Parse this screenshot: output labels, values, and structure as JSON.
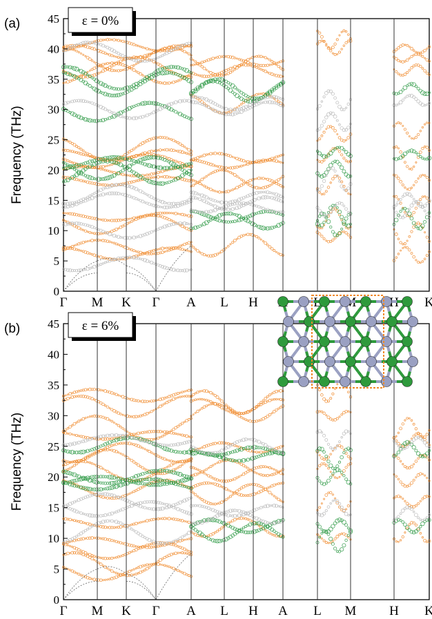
{
  "colors": {
    "orange": "#f08a2c",
    "green": "#2f9a46",
    "gray": "#b8b8b8",
    "line": "#333333",
    "atom_green": "#2e9a3c",
    "atom_blue": "#9aa0c2",
    "box": "#ef8a2a"
  },
  "chart_data": [
    {
      "type": "scatter",
      "subtype": "phonon-band-structure",
      "panel_label": "(a)",
      "strain_label": "ε = 0%",
      "ylabel": "Frequency (THz)",
      "ylim": [
        0,
        45
      ],
      "yticks": [
        "0",
        "5",
        "10",
        "15",
        "20",
        "25",
        "30",
        "35",
        "40",
        "45"
      ],
      "kpath": [
        "Γ",
        "M",
        "K",
        "Γ",
        "A",
        "L",
        "H",
        "A",
        "L",
        "M",
        "H",
        "K"
      ],
      "grid": "vertical lines at high-symmetry points",
      "series": [
        {
          "color": "orange",
          "bands": [
            {
              "seg": [
                0,
                4
              ],
              "y": [
                40.6,
                39.5,
                38.3,
                37.0,
                36.0,
                23.5,
                22.5,
                21.5,
                19.8,
                18.2,
                12.3,
                11.0,
                7.3,
                6.2
              ]
            },
            {
              "seg": [
                4,
                7
              ],
              "y": [
                38.0,
                37.2,
                36.4,
                31.0,
                22.0,
                21.0,
                18.5,
                17.5,
                7.6
              ]
            },
            {
              "seg": [
                8,
                9
              ],
              "y": [
                41.5,
                40.2,
                26.0,
                22.5,
                17.5,
                12.0,
                9.0
              ]
            },
            {
              "seg": [
                10,
                11
              ],
              "y": [
                40.0,
                38.5,
                36.5,
                26.5,
                22.0,
                18.0,
                14.0,
                9.5,
                6.0
              ]
            }
          ]
        },
        {
          "color": "green",
          "bands": [
            {
              "seg": [
                0,
                4
              ],
              "y": [
                35.2,
                34.2,
                29.6,
                21.2,
                20.3,
                19.6
              ]
            },
            {
              "seg": [
                4,
                7
              ],
              "y": [
                33.4,
                33.0,
                12.3,
                11.6
              ]
            },
            {
              "seg": [
                8,
                9
              ],
              "y": [
                23.0,
                20.2,
                12.5,
                11.0
              ]
            },
            {
              "seg": [
                10,
                11
              ],
              "y": [
                33.4,
                22.5,
                12.0
              ]
            }
          ]
        },
        {
          "color": "gray",
          "bands": [
            {
              "seg": [
                0,
                4
              ],
              "y": [
                39.5,
                30.0,
                16.0,
                15.0,
                10.0,
                4.5
              ]
            },
            {
              "seg": [
                4,
                7
              ],
              "y": [
                31.0,
                30.2,
                15.5,
                14.5,
                13.8
              ]
            },
            {
              "seg": [
                8,
                9
              ],
              "y": [
                31.5,
                28.0,
                18.5,
                13.5
              ]
            },
            {
              "seg": [
                10,
                11
              ],
              "y": [
                31.5,
                15.0,
                13.5
              ]
            }
          ]
        }
      ]
    },
    {
      "type": "scatter",
      "subtype": "phonon-band-structure",
      "panel_label": "(b)",
      "strain_label": "ε = 6%",
      "ylabel": "Frequency (THz)",
      "ylim": [
        0,
        45
      ],
      "yticks": [
        "0",
        "5",
        "10",
        "15",
        "20",
        "25",
        "30",
        "35",
        "40",
        "45"
      ],
      "kpath": [
        "Γ",
        "M",
        "K",
        "Γ",
        "A",
        "L",
        "H",
        "A",
        "L",
        "M",
        "H",
        "K"
      ],
      "grid": "vertical lines at high-symmetry points",
      "inset": "crystal-structure with orange dashed unit cell (top-right)",
      "series": [
        {
          "color": "orange",
          "bands": [
            {
              "seg": [
                0,
                4
              ],
              "y": [
                33.3,
                31.5,
                28.0,
                26.8,
                24.0,
                22.5,
                21.0,
                18.0,
                12.5,
                9.3,
                8.0,
                5.8,
                4.5
              ]
            },
            {
              "seg": [
                4,
                7
              ],
              "y": [
                32.2,
                31.5,
                30.5,
                24.8,
                21.5,
                20.5,
                18.0,
                17.2,
                11.8
              ]
            },
            {
              "seg": [
                8,
                9
              ],
              "y": [
                34.0,
                30.0,
                24.0,
                21.0,
                16.0,
                10.0
              ]
            },
            {
              "seg": [
                10,
                11
              ],
              "y": [
                28.0,
                26.0,
                22.5,
                19.5,
                16.0,
                11.0
              ]
            }
          ]
        },
        {
          "color": "green",
          "bands": [
            {
              "seg": [
                0,
                4
              ],
              "y": [
                25.2,
                20.0,
                19.4,
                18.8
              ]
            },
            {
              "seg": [
                4,
                7
              ],
              "y": [
                24.2,
                23.3,
                12.0,
                11.0
              ]
            },
            {
              "seg": [
                8,
                9
              ],
              "y": [
                23.0,
                20.0,
                12.0,
                9.5
              ]
            },
            {
              "seg": [
                10,
                11
              ],
              "y": [
                24.5,
                12.0
              ]
            }
          ]
        },
        {
          "color": "gray",
          "bands": [
            {
              "seg": [
                0,
                4
              ],
              "y": [
                26.0,
                16.0,
                14.8,
                11.0
              ]
            },
            {
              "seg": [
                4,
                7
              ],
              "y": [
                25.0,
                14.5,
                13.5
              ]
            },
            {
              "seg": [
                8,
                9
              ],
              "y": [
                26.0,
                15.0
              ]
            },
            {
              "seg": [
                10,
                11
              ],
              "y": [
                25.5,
                14.0
              ]
            }
          ]
        }
      ]
    }
  ]
}
